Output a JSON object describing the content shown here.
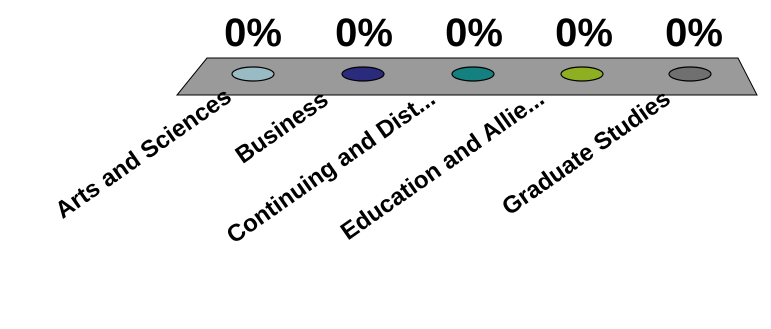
{
  "chart_data": {
    "type": "bar",
    "categories": [
      "Arts and Sciences",
      "Business",
      "Continuing and Dist...",
      "Education and Allie...",
      "Graduate Studies"
    ],
    "value_labels": [
      "0%",
      "0%",
      "0%",
      "0%",
      "0%"
    ],
    "values": [
      0,
      0,
      0,
      0,
      0
    ],
    "series_colors": [
      "#99BBC4",
      "#2B2B7D",
      "#158080",
      "#8FAF22",
      "#707070"
    ],
    "platform_color": "#9A9A9A",
    "grid": false,
    "legend": "none",
    "projection": "3d"
  }
}
